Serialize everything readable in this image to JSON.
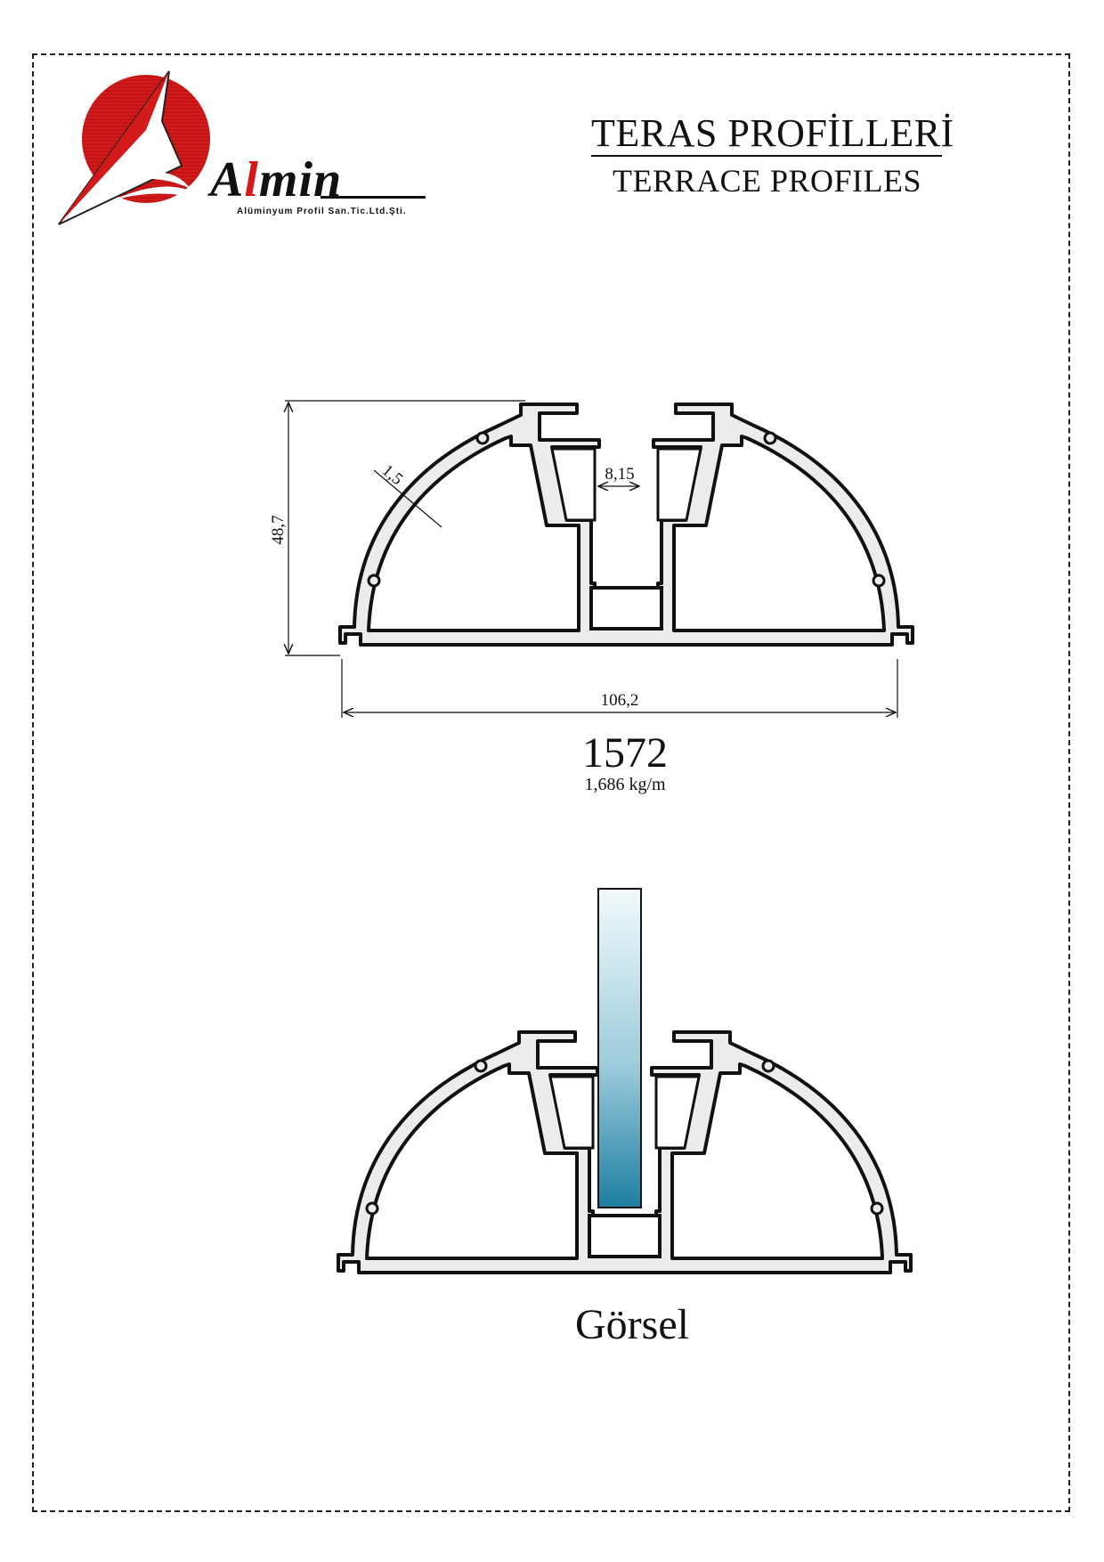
{
  "brand": {
    "name_rest": "min",
    "name_l": "l",
    "name_a": "A",
    "tagline": "Alüminyum Profil San.Tic.Ltd.Şti."
  },
  "header": {
    "title_tr": "TERAS PROFİLLERİ",
    "title_en": "TERRACE PROFILES"
  },
  "dimensions": {
    "height": "48,7",
    "wall": "1,5",
    "gap": "8,15",
    "width": "106,2"
  },
  "profile": {
    "code": "1572",
    "weight": "1,686 kg/m"
  },
  "visual": {
    "label": "Görsel"
  },
  "colors": {
    "logo_red": "#d21a1a",
    "profile_fill": "#ececec",
    "glass_top": "#f2fafc",
    "glass_bottom": "#1d7ea0"
  }
}
